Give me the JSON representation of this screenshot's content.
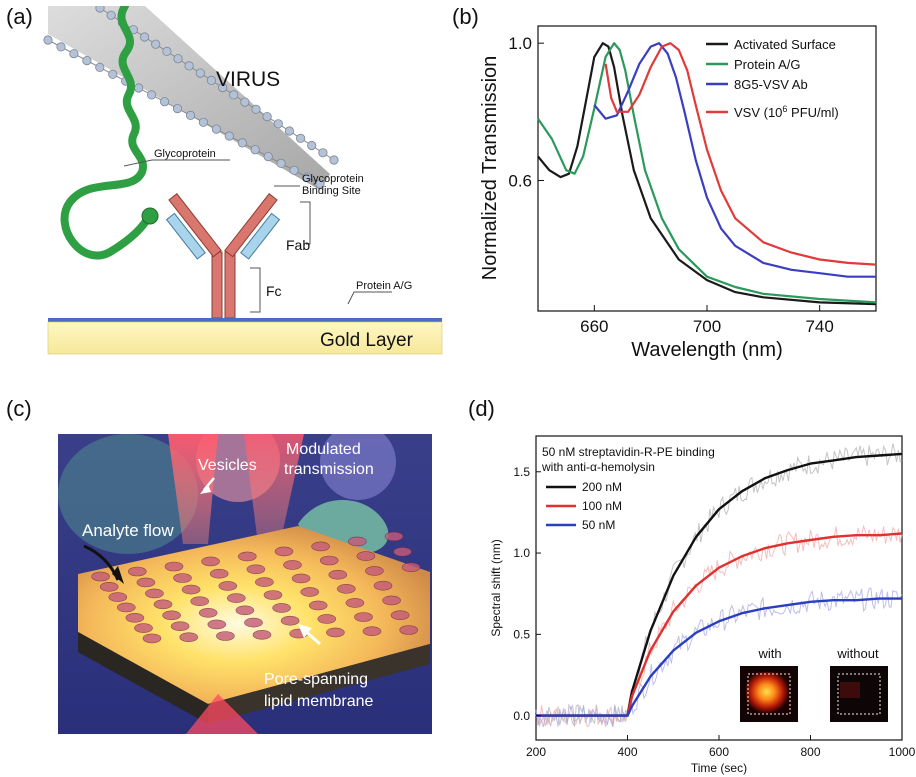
{
  "panels": {
    "a": {
      "label": "(a)",
      "virus": "VIRUS",
      "glycoprotein": "Glycoprotein",
      "binding_site_line1": "Glycoprotein",
      "binding_site_line2": "Binding Site",
      "fab": "Fab",
      "fc": "Fc",
      "protein_ag": "Protein A/G",
      "gold_layer": "Gold Layer",
      "colors": {
        "virus_protein": "#2ea043",
        "antibody": "#d9776e",
        "fab_domain": "#a8d4ec",
        "gold": "#fbf1a8",
        "substrate_line": "#4b6cc4"
      }
    },
    "b": {
      "label": "(b)",
      "legend_vsv_pre": "VSV (10",
      "legend_vsv_sup": "6",
      "legend_vsv_post": " PFU/ml)"
    },
    "c": {
      "label": "(c)",
      "vesicles": "Vesicles",
      "modulated_line1": "Modulated",
      "modulated_line2": "transmission",
      "analyte_flow": "Analyte flow",
      "pore_line1": "Pore-spanning",
      "pore_line2": "lipid membrane"
    },
    "d": {
      "label": "(d)",
      "annotation_line1": "50 nM streptavidin-R-PE binding",
      "annotation_line2": "with anti-α-hemolysin",
      "inset_with": "with",
      "inset_without": "without"
    }
  },
  "chart_data": [
    {
      "type": "line",
      "panel": "b",
      "xlabel": "Wavelength (nm)",
      "ylabel": "Normalized Transmission",
      "xlim": [
        640,
        760
      ],
      "ylim": [
        0.22,
        1.05
      ],
      "xticks": [
        660,
        700,
        740
      ],
      "yticks": [
        0.6,
        1.0
      ],
      "xtick_labels": [
        "660",
        "700",
        "740"
      ],
      "ytick_labels": [
        "0.6",
        "1.0"
      ],
      "legend_position": "top-right",
      "series": [
        {
          "name": "Activated Surface",
          "color": "#1a1a1a",
          "x": [
            640,
            644,
            648,
            651,
            654,
            657,
            660,
            663,
            665,
            667,
            670,
            674,
            680,
            690,
            700,
            710,
            720,
            740,
            760
          ],
          "y": [
            0.67,
            0.63,
            0.61,
            0.62,
            0.7,
            0.83,
            0.96,
            1.0,
            0.99,
            0.93,
            0.79,
            0.63,
            0.49,
            0.37,
            0.31,
            0.275,
            0.26,
            0.245,
            0.24
          ]
        },
        {
          "name": "Protein A/G",
          "color": "#2a9a5a",
          "x": [
            640,
            645,
            650,
            653,
            656,
            660,
            664,
            667,
            669,
            671,
            674,
            678,
            684,
            690,
            700,
            710,
            720,
            740,
            760
          ],
          "y": [
            0.78,
            0.72,
            0.63,
            0.62,
            0.67,
            0.81,
            0.96,
            1.0,
            0.98,
            0.92,
            0.79,
            0.63,
            0.49,
            0.4,
            0.32,
            0.29,
            0.27,
            0.255,
            0.245
          ]
        },
        {
          "name": "8G5-VSV Ab",
          "color": "#3b3fbf",
          "x": [
            660,
            664,
            668,
            672,
            676,
            680,
            683,
            686,
            689,
            692,
            696,
            700,
            705,
            710,
            720,
            730,
            740,
            750,
            760
          ],
          "y": [
            0.82,
            0.78,
            0.79,
            0.86,
            0.94,
            0.99,
            1.0,
            0.97,
            0.9,
            0.8,
            0.66,
            0.55,
            0.46,
            0.41,
            0.36,
            0.34,
            0.33,
            0.32,
            0.32
          ]
        },
        {
          "name": "VSV (10^6 PFU/ml)",
          "color": "#e03a3a",
          "x": [
            664,
            666,
            668,
            672,
            676,
            680,
            684,
            687,
            690,
            693,
            696,
            700,
            705,
            710,
            720,
            730,
            740,
            750,
            760
          ],
          "y": [
            0.94,
            0.84,
            0.8,
            0.8,
            0.85,
            0.93,
            0.99,
            1.0,
            0.98,
            0.92,
            0.82,
            0.69,
            0.57,
            0.49,
            0.42,
            0.39,
            0.37,
            0.36,
            0.355
          ]
        }
      ]
    },
    {
      "type": "line",
      "panel": "d",
      "xlabel": "Time (sec)",
      "ylabel": "Spectral shift (nm)",
      "xlim": [
        200,
        1000
      ],
      "ylim": [
        -0.15,
        1.72
      ],
      "xticks": [
        200,
        400,
        600,
        800,
        1000
      ],
      "yticks": [
        0.0,
        0.5,
        1.0,
        1.5
      ],
      "xtick_labels": [
        "200",
        "400",
        "600",
        "800",
        "1000"
      ],
      "ytick_labels": [
        "0.0",
        "0.5",
        "1.0",
        "1.5"
      ],
      "legend_position": "top-left",
      "series": [
        {
          "name": "200 nM",
          "color": "#111111",
          "x": [
            200,
            400,
            410,
            450,
            500,
            550,
            600,
            650,
            700,
            750,
            800,
            850,
            900,
            950,
            1000
          ],
          "y": [
            0.0,
            0.0,
            0.15,
            0.52,
            0.86,
            1.1,
            1.27,
            1.38,
            1.46,
            1.51,
            1.55,
            1.57,
            1.59,
            1.6,
            1.61
          ]
        },
        {
          "name": "100 nM",
          "color": "#e03030",
          "x": [
            200,
            400,
            410,
            450,
            500,
            550,
            600,
            650,
            700,
            750,
            800,
            850,
            900,
            950,
            1000
          ],
          "y": [
            0.0,
            0.0,
            0.12,
            0.4,
            0.64,
            0.8,
            0.91,
            0.98,
            1.03,
            1.06,
            1.08,
            1.1,
            1.11,
            1.11,
            1.12
          ]
        },
        {
          "name": "50 nM",
          "color": "#2a3fc0",
          "x": [
            200,
            400,
            410,
            450,
            500,
            550,
            600,
            650,
            700,
            750,
            800,
            850,
            900,
            950,
            1000
          ],
          "y": [
            0.0,
            0.0,
            0.06,
            0.24,
            0.4,
            0.51,
            0.58,
            0.63,
            0.66,
            0.68,
            0.7,
            0.71,
            0.71,
            0.72,
            0.72
          ]
        }
      ]
    }
  ]
}
